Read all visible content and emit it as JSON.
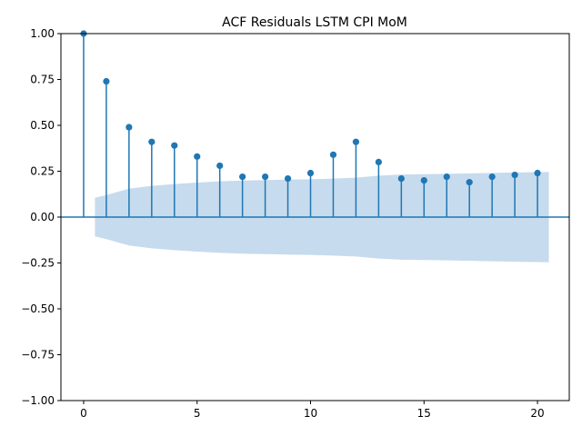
{
  "chart_data": {
    "type": "stem",
    "title": "ACF Residuals LSTM CPI MoM",
    "xlabel": "",
    "ylabel": "",
    "xlim": [
      -1,
      21.4
    ],
    "ylim": [
      -1.0,
      1.0
    ],
    "xticks": [
      0,
      5,
      10,
      15,
      20
    ],
    "yticks": [
      -1.0,
      -0.75,
      -0.5,
      -0.25,
      0.0,
      0.25,
      0.5,
      0.75,
      1.0
    ],
    "ytick_labels": [
      "−1.00",
      "−0.75",
      "−0.50",
      "−0.25",
      "0.00",
      "0.25",
      "0.50",
      "0.75",
      "1.00"
    ],
    "xtick_labels": [
      "0",
      "5",
      "10",
      "15",
      "20"
    ],
    "lags": [
      0,
      1,
      2,
      3,
      4,
      5,
      6,
      7,
      8,
      9,
      10,
      11,
      12,
      13,
      14,
      15,
      16,
      17,
      18,
      19,
      20
    ],
    "values": [
      1.0,
      0.74,
      0.49,
      0.41,
      0.39,
      0.33,
      0.28,
      0.22,
      0.22,
      0.21,
      0.24,
      0.34,
      0.41,
      0.3,
      0.21,
      0.2,
      0.22,
      0.19,
      0.22,
      0.23,
      0.24
    ],
    "confidence_band": {
      "x": [
        0.5,
        1,
        2,
        3,
        4,
        5,
        6,
        7,
        8,
        9,
        10,
        11,
        12,
        13,
        14,
        15,
        16,
        17,
        18,
        19,
        20,
        20.5
      ],
      "upper": [
        0.105,
        0.12,
        0.155,
        0.17,
        0.18,
        0.188,
        0.195,
        0.199,
        0.202,
        0.204,
        0.206,
        0.21,
        0.215,
        0.226,
        0.232,
        0.234,
        0.236,
        0.238,
        0.241,
        0.243,
        0.245,
        0.246
      ]
    },
    "colors": {
      "stem": "#1f77b4",
      "band": "#c6dbed",
      "zero_line": "#1f77b4"
    },
    "grid": false
  }
}
